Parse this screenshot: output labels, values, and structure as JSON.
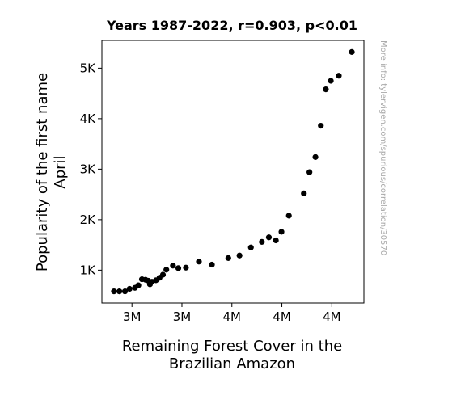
{
  "chart_data": {
    "type": "scatter",
    "title": "Years 1987-2022, r=0.903, p<0.01",
    "xlabel": [
      "Remaining Forest Cover in the",
      "Brazilian Amazon"
    ],
    "ylabel": [
      "Popularity of the first name",
      "April"
    ],
    "watermark": "More info: tylervigen.com/spurious/correlation/30570",
    "x_ticks": [
      {
        "value": 3.0,
        "label": "3M"
      },
      {
        "value": 3.25,
        "label": "3M"
      },
      {
        "value": 3.5,
        "label": "4M"
      },
      {
        "value": 3.75,
        "label": "4M"
      },
      {
        "value": 4.0,
        "label": "4M"
      }
    ],
    "y_ticks": [
      {
        "value": 1000,
        "label": "1K"
      },
      {
        "value": 2000,
        "label": "2K"
      },
      {
        "value": 3000,
        "label": "3K"
      },
      {
        "value": 4000,
        "label": "4K"
      },
      {
        "value": 5000,
        "label": "5K"
      }
    ],
    "xlim": [
      2.8495,
      4.1605
    ],
    "ylim": [
      350,
      5550
    ],
    "marker_color": "#000000",
    "points": [
      {
        "x": 2.91,
        "y": 580
      },
      {
        "x": 2.937,
        "y": 580
      },
      {
        "x": 2.965,
        "y": 580
      },
      {
        "x": 2.988,
        "y": 630
      },
      {
        "x": 3.015,
        "y": 650
      },
      {
        "x": 3.032,
        "y": 700
      },
      {
        "x": 3.05,
        "y": 820
      },
      {
        "x": 3.068,
        "y": 810
      },
      {
        "x": 3.082,
        "y": 790
      },
      {
        "x": 3.09,
        "y": 720
      },
      {
        "x": 3.1,
        "y": 770
      },
      {
        "x": 3.12,
        "y": 800
      },
      {
        "x": 3.138,
        "y": 850
      },
      {
        "x": 3.155,
        "y": 910
      },
      {
        "x": 3.172,
        "y": 1010
      },
      {
        "x": 3.205,
        "y": 1090
      },
      {
        "x": 3.232,
        "y": 1040
      },
      {
        "x": 3.27,
        "y": 1050
      },
      {
        "x": 3.335,
        "y": 1170
      },
      {
        "x": 3.4,
        "y": 1110
      },
      {
        "x": 3.482,
        "y": 1240
      },
      {
        "x": 3.538,
        "y": 1290
      },
      {
        "x": 3.595,
        "y": 1450
      },
      {
        "x": 3.65,
        "y": 1560
      },
      {
        "x": 3.685,
        "y": 1650
      },
      {
        "x": 3.72,
        "y": 1590
      },
      {
        "x": 3.748,
        "y": 1760
      },
      {
        "x": 3.785,
        "y": 2080
      },
      {
        "x": 3.86,
        "y": 2520
      },
      {
        "x": 3.888,
        "y": 2940
      },
      {
        "x": 3.918,
        "y": 3240
      },
      {
        "x": 3.945,
        "y": 3860
      },
      {
        "x": 3.97,
        "y": 4580
      },
      {
        "x": 3.995,
        "y": 4750
      },
      {
        "x": 4.035,
        "y": 4850
      },
      {
        "x": 4.1,
        "y": 5320
      }
    ]
  }
}
